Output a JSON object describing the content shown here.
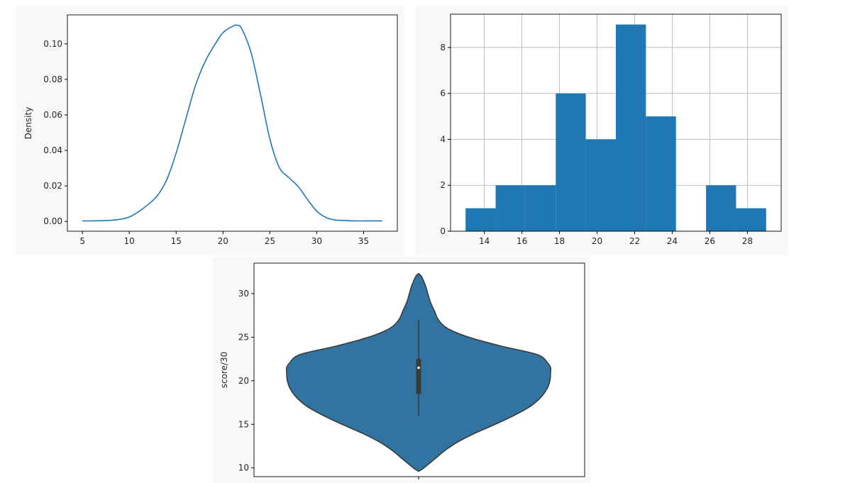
{
  "chart_data": [
    {
      "type": "line",
      "subtype": "kde",
      "title": "",
      "xlabel": "",
      "ylabel": "Density",
      "xlim": [
        3.4,
        38.6
      ],
      "ylim": [
        -0.0055,
        0.1163
      ],
      "xticks": [
        5,
        10,
        15,
        20,
        25,
        30,
        35
      ],
      "yticks": [
        0.0,
        0.02,
        0.04,
        0.06,
        0.08,
        0.1
      ],
      "ytick_labels": [
        "0.00",
        "0.02",
        "0.04",
        "0.06",
        "0.08",
        "0.10"
      ],
      "grid": false,
      "color": "#1f77b4",
      "x": [
        5,
        6,
        7,
        8,
        9,
        10,
        11,
        12,
        13,
        14,
        15,
        16,
        17,
        18,
        19,
        20,
        21,
        21.5,
        22,
        23,
        24,
        25,
        26,
        27,
        28,
        29,
        30,
        31,
        32,
        33,
        34,
        35,
        36,
        37
      ],
      "y": [
        0.0003,
        0.0003,
        0.0004,
        0.0006,
        0.0012,
        0.0025,
        0.0055,
        0.0095,
        0.0145,
        0.0235,
        0.0385,
        0.057,
        0.0755,
        0.089,
        0.0985,
        0.1063,
        0.1098,
        0.1105,
        0.1085,
        0.095,
        0.0715,
        0.0465,
        0.0305,
        0.0248,
        0.0198,
        0.0125,
        0.0058,
        0.0022,
        0.0008,
        0.0005,
        0.0003,
        0.0003,
        0.0003,
        0.0003
      ]
    },
    {
      "type": "bar",
      "subtype": "histogram",
      "title": "",
      "xlabel": "",
      "ylabel": "",
      "xlim": [
        12.2,
        29.8
      ],
      "ylim": [
        0,
        9.45
      ],
      "xticks": [
        14,
        16,
        18,
        20,
        22,
        24,
        26,
        28
      ],
      "yticks": [
        0,
        2,
        4,
        6,
        8
      ],
      "grid": true,
      "color": "#1f77b4",
      "bin_edges": [
        13,
        14.6,
        16.2,
        17.8,
        19.4,
        21,
        22.6,
        24.2,
        25.8,
        27.4,
        29
      ],
      "values": [
        1,
        2,
        2,
        6,
        4,
        9,
        5,
        0,
        2,
        1
      ]
    },
    {
      "type": "violin",
      "title": "",
      "xlabel": "",
      "ylabel": "score/30",
      "ylim": [
        9,
        33.5
      ],
      "yticks": [
        10,
        15,
        20,
        25,
        30
      ],
      "grid": false,
      "color": "#3274a1",
      "edge_color": "#3a3a3a",
      "width_ratio": [
        [
          9.6,
          0.0
        ],
        [
          10,
          0.04
        ],
        [
          11,
          0.12
        ],
        [
          12,
          0.2
        ],
        [
          13,
          0.3
        ],
        [
          14,
          0.43
        ],
        [
          15,
          0.58
        ],
        [
          16,
          0.72
        ],
        [
          17,
          0.84
        ],
        [
          18,
          0.92
        ],
        [
          19,
          0.97
        ],
        [
          20,
          0.995
        ],
        [
          21,
          1.0
        ],
        [
          21.5,
          1.0
        ],
        [
          22,
          0.98
        ],
        [
          23,
          0.9
        ],
        [
          24,
          0.62
        ],
        [
          25,
          0.38
        ],
        [
          26,
          0.22
        ],
        [
          27,
          0.15
        ],
        [
          28,
          0.12
        ],
        [
          29,
          0.09
        ],
        [
          30,
          0.07
        ],
        [
          31,
          0.05
        ],
        [
          32,
          0.02
        ],
        [
          32.3,
          0.0
        ]
      ],
      "whisker": [
        16,
        27
      ],
      "quartiles": [
        18.5,
        22.5
      ],
      "median": 21.5
    }
  ]
}
